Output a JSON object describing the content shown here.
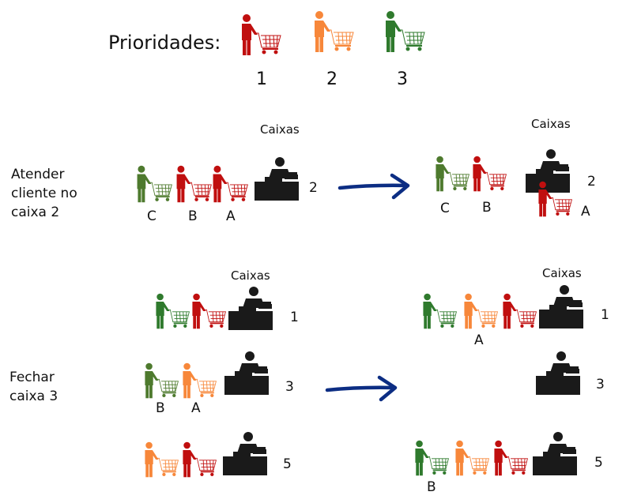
{
  "title": "Prioridades:",
  "colors": {
    "red": "#C00F0F",
    "orange": "#F7873A",
    "green": "#2F7A2D",
    "olive": "#4E7A2E",
    "black": "#1A1A1A",
    "arrow": "#0C2D83"
  },
  "legend": [
    {
      "color": "red",
      "priority": "1"
    },
    {
      "color": "orange",
      "priority": "2"
    },
    {
      "color": "green",
      "priority": "3"
    }
  ],
  "top": {
    "side_label": "Atender cliente no caixa 2",
    "left_caixas": "Caixas",
    "right_caixas": "Caixas",
    "before": {
      "queue": [
        {
          "color": "olive",
          "label": "C"
        },
        {
          "color": "red",
          "label": "B"
        },
        {
          "color": "red",
          "label": "A"
        }
      ],
      "register": "2"
    },
    "after": {
      "queue": [
        {
          "color": "olive",
          "label": "C"
        },
        {
          "color": "red",
          "label": "B"
        }
      ],
      "served": {
        "color": "red",
        "label": "A"
      },
      "register": "2"
    }
  },
  "bottom": {
    "side_label": "Fechar caixa 3",
    "left_caixas": "Caixas",
    "right_caixas": "Caixas",
    "before": [
      {
        "register": "1",
        "queue": [
          {
            "color": "green"
          },
          {
            "color": "red"
          }
        ]
      },
      {
        "register": "3",
        "queue": [
          {
            "color": "olive",
            "label": "B"
          },
          {
            "color": "orange",
            "label": "A"
          }
        ]
      },
      {
        "register": "5",
        "queue": [
          {
            "color": "orange"
          },
          {
            "color": "red"
          }
        ]
      }
    ],
    "after": [
      {
        "register": "1",
        "queue": [
          {
            "color": "green"
          },
          {
            "color": "orange",
            "label": "A"
          },
          {
            "color": "red"
          }
        ]
      },
      {
        "register": "3",
        "queue": []
      },
      {
        "register": "5",
        "queue": [
          {
            "color": "green",
            "label": "B"
          },
          {
            "color": "orange"
          },
          {
            "color": "red"
          }
        ]
      }
    ]
  }
}
